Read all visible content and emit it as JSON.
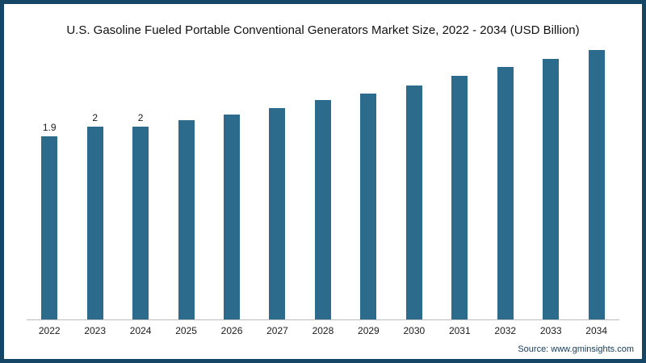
{
  "chart_data": {
    "type": "bar",
    "title": "U.S. Gasoline Fueled Portable Conventional Generators Market Size, 2022 - 2034 (USD Billion)",
    "categories": [
      "2022",
      "2023",
      "2024",
      "2025",
      "2026",
      "2027",
      "2028",
      "2029",
      "2030",
      "2031",
      "2032",
      "2033",
      "2034"
    ],
    "values": [
      1.9,
      2.0,
      2.0,
      2.07,
      2.13,
      2.2,
      2.28,
      2.35,
      2.43,
      2.53,
      2.62,
      2.71,
      2.8
    ],
    "data_labels": [
      "1.9",
      "2",
      "2",
      "",
      "",
      "",
      "",
      "",
      "",
      "",
      "",
      "",
      ""
    ],
    "xlabel": "",
    "ylabel": "",
    "ylim": [
      0,
      2.85
    ],
    "grid": false,
    "legend": "none",
    "bar_color": "#2d6b8d"
  },
  "footer": {
    "source": "Source: www.gminsights.com"
  }
}
